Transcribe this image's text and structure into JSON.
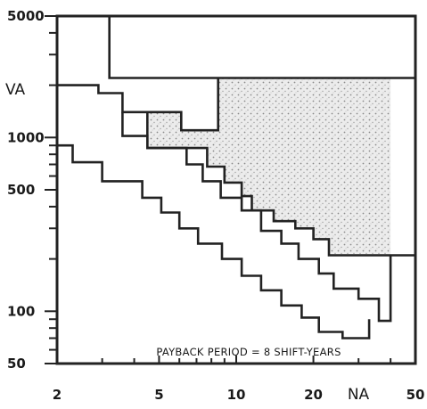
{
  "chart_data": {
    "type": "line",
    "title": "",
    "x_axis": {
      "label": "NA",
      "scale": "log",
      "range": [
        2,
        50
      ],
      "major_ticks": [
        2,
        5,
        10,
        20,
        50
      ],
      "tick_labels": [
        "2",
        "5",
        "10",
        "20",
        "50"
      ],
      "minor_ticks": [
        3,
        4,
        6,
        7,
        8,
        9,
        30,
        40
      ]
    },
    "y_axis": {
      "label": "VA",
      "scale": "log",
      "range": [
        50,
        5000
      ],
      "major_ticks": [
        50,
        100,
        500,
        1000,
        5000
      ],
      "tick_labels": [
        "50",
        "100",
        "500",
        "1000",
        "5000"
      ],
      "minor_ticks": [
        60,
        70,
        80,
        90,
        200,
        300,
        400,
        600,
        700,
        800,
        900,
        2000,
        3000,
        4000
      ]
    },
    "annotation": "PAYBACK PERIOD = 8 SHIFT-YEARS",
    "shaded_region": {
      "description_color": "#9a9a9a",
      "polygon": [
        [
          4.5,
          1400
        ],
        [
          6.1,
          1400
        ],
        [
          6.1,
          1100
        ],
        [
          8.5,
          1100
        ],
        [
          8.5,
          2200
        ],
        [
          40,
          2200
        ],
        [
          40,
          210
        ],
        [
          23,
          210
        ],
        [
          23,
          260
        ],
        [
          20,
          260
        ],
        [
          20,
          300
        ],
        [
          17,
          300
        ],
        [
          17,
          330
        ],
        [
          14,
          330
        ],
        [
          14,
          380
        ],
        [
          11.5,
          380
        ],
        [
          11.5,
          460
        ],
        [
          10.5,
          460
        ],
        [
          10.5,
          550
        ],
        [
          9,
          550
        ],
        [
          9,
          680
        ],
        [
          7.7,
          680
        ],
        [
          7.7,
          870
        ],
        [
          4.5,
          870
        ]
      ]
    },
    "grid": false,
    "series": [
      {
        "points": [
          [
            3.2,
            5000
          ],
          [
            3.2,
            2200
          ],
          [
            50,
            2200
          ]
        ]
      },
      {
        "points": [
          [
            2,
            2000
          ],
          [
            2.9,
            2000
          ],
          [
            2.9,
            1800
          ],
          [
            3.6,
            1800
          ],
          [
            3.6,
            1400
          ],
          [
            6.1,
            1400
          ],
          [
            6.1,
            1100
          ],
          [
            8.5,
            1100
          ],
          [
            8.5,
            2200
          ]
        ]
      },
      {
        "points": [
          [
            4.5,
            1400
          ],
          [
            4.5,
            870
          ],
          [
            7.7,
            870
          ],
          [
            7.7,
            680
          ],
          [
            9,
            680
          ],
          [
            9,
            550
          ],
          [
            10.5,
            550
          ],
          [
            10.5,
            460
          ],
          [
            11.5,
            460
          ],
          [
            11.5,
            380
          ],
          [
            14,
            380
          ],
          [
            14,
            330
          ],
          [
            17,
            330
          ],
          [
            17,
            300
          ],
          [
            20,
            300
          ],
          [
            20,
            260
          ],
          [
            23,
            260
          ],
          [
            23,
            210
          ],
          [
            50,
            210
          ]
        ]
      },
      {
        "points": [
          [
            3.6,
            1400
          ],
          [
            3.6,
            1020
          ],
          [
            4.5,
            1020
          ],
          [
            4.5,
            870
          ],
          [
            6.4,
            870
          ],
          [
            6.4,
            700
          ],
          [
            7.4,
            700
          ],
          [
            7.4,
            560
          ],
          [
            8.7,
            560
          ],
          [
            8.7,
            450
          ],
          [
            10.5,
            450
          ],
          [
            10.5,
            380
          ],
          [
            12.5,
            380
          ],
          [
            12.5,
            290
          ],
          [
            15,
            290
          ],
          [
            15,
            245
          ],
          [
            17.5,
            245
          ],
          [
            17.5,
            200
          ],
          [
            21,
            200
          ],
          [
            21,
            165
          ],
          [
            24,
            165
          ],
          [
            24,
            135
          ],
          [
            30,
            135
          ],
          [
            30,
            118
          ],
          [
            36,
            118
          ],
          [
            36,
            88
          ],
          [
            40,
            88
          ],
          [
            40,
            210
          ]
        ]
      },
      {
        "points": [
          [
            2,
            900
          ],
          [
            2.3,
            900
          ],
          [
            2.3,
            720
          ],
          [
            3,
            720
          ],
          [
            3,
            560
          ],
          [
            4.3,
            560
          ],
          [
            4.3,
            450
          ],
          [
            5.1,
            450
          ],
          [
            5.1,
            370
          ],
          [
            6,
            370
          ],
          [
            6,
            300
          ],
          [
            7.1,
            300
          ],
          [
            7.1,
            245
          ],
          [
            8.8,
            245
          ],
          [
            8.8,
            200
          ],
          [
            10.5,
            200
          ],
          [
            10.5,
            160
          ],
          [
            12.5,
            160
          ],
          [
            12.5,
            132
          ],
          [
            15,
            132
          ],
          [
            15,
            108
          ],
          [
            18,
            108
          ],
          [
            18,
            92
          ],
          [
            21,
            92
          ],
          [
            21,
            76
          ],
          [
            26,
            76
          ],
          [
            26,
            70
          ],
          [
            33,
            70
          ],
          [
            33,
            90
          ]
        ]
      }
    ]
  }
}
